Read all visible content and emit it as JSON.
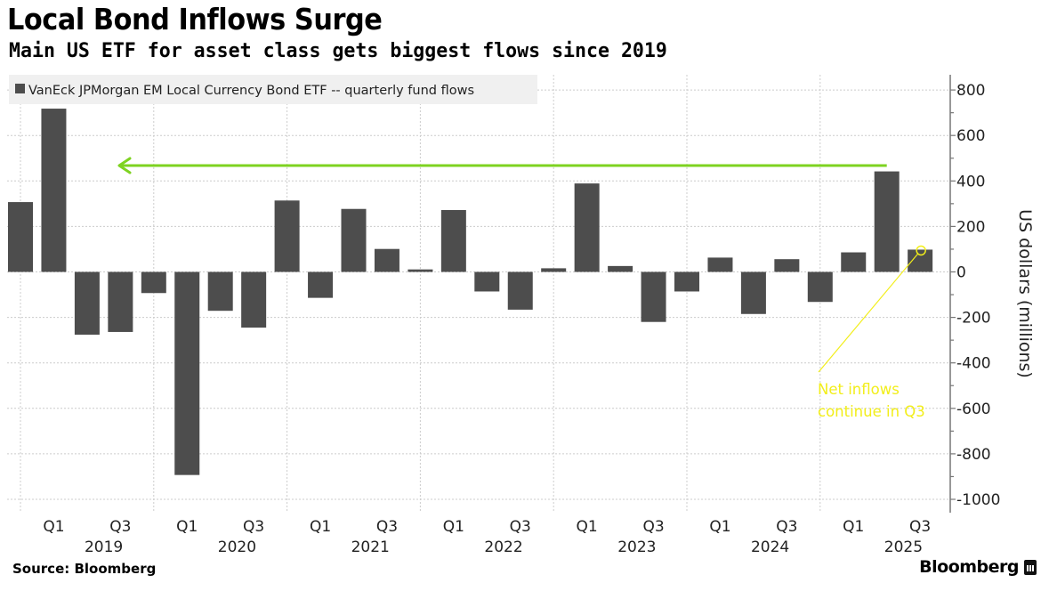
{
  "header": {
    "title": "Local Bond Inflows Surge",
    "subtitle": "Main US ETF for asset class gets biggest flows since 2019"
  },
  "footer": {
    "source": "Source: Bloomberg",
    "brand": "Bloomberg"
  },
  "colors": {
    "bar": "#4d4d4d",
    "arrow": "#7ed321",
    "annotation": "#f2ee1a",
    "legend_bg": "#f0f0f0",
    "grid": "#cccccc"
  },
  "chart_data": {
    "type": "bar",
    "title": "Local Bond Inflows Surge",
    "subtitle": "Main US ETF for asset class gets biggest flows since 2019",
    "xlabel": "",
    "ylabel": "US dollars (millions)",
    "ylim": [
      -1000,
      860
    ],
    "yticks": [
      800,
      600,
      400,
      200,
      0,
      -200,
      -400,
      -600,
      -800,
      -1000
    ],
    "ytick_labels": [
      "800",
      "600",
      "400",
      "200",
      "0",
      "-200",
      "-400",
      "-600",
      "-800",
      "-1000"
    ],
    "y_axis_position": "right",
    "grid": true,
    "legend": {
      "position": "top-left",
      "entries": [
        "VanEck JPMorgan EM Local Currency Bond ETF -- quarterly fund flows"
      ]
    },
    "categories": [
      "2018 Q4",
      "2019 Q1",
      "2019 Q2",
      "2019 Q3",
      "2019 Q4",
      "2020 Q1",
      "2020 Q2",
      "2020 Q3",
      "2020 Q4",
      "2021 Q1",
      "2021 Q2",
      "2021 Q3",
      "2021 Q4",
      "2022 Q1",
      "2022 Q2",
      "2022 Q3",
      "2022 Q4",
      "2023 Q1",
      "2023 Q2",
      "2023 Q3",
      "2023 Q4",
      "2024 Q1",
      "2024 Q2",
      "2024 Q3",
      "2024 Q4",
      "2025 Q1",
      "2025 Q2",
      "2025 Q3"
    ],
    "series": [
      {
        "name": "VanEck JPMorgan EM Local Currency Bond ETF -- quarterly fund flows",
        "values": [
          307,
          718,
          -276,
          -264,
          -93,
          -893,
          -171,
          -245,
          314,
          -114,
          277,
          101,
          11,
          272,
          -86,
          -166,
          16,
          389,
          26,
          -220,
          -86,
          63,
          -185,
          56,
          -132,
          86,
          442,
          98
        ]
      }
    ],
    "x_quarter_labels": [
      "Q1",
      "Q3"
    ],
    "x_years": [
      "2019",
      "2020",
      "2021",
      "2022",
      "2023",
      "2024",
      "2025"
    ],
    "annotations": [
      {
        "type": "arrow",
        "text": "",
        "from_category": "2025 Q2",
        "to_category": "2019 Q3",
        "y_value": 465,
        "color": "#7ed321"
      },
      {
        "type": "callout",
        "text_lines": [
          "Net inflows",
          "continue in Q3"
        ],
        "points_to": "2025 Q3",
        "y_value": 98,
        "color": "#f2ee1a"
      }
    ]
  }
}
